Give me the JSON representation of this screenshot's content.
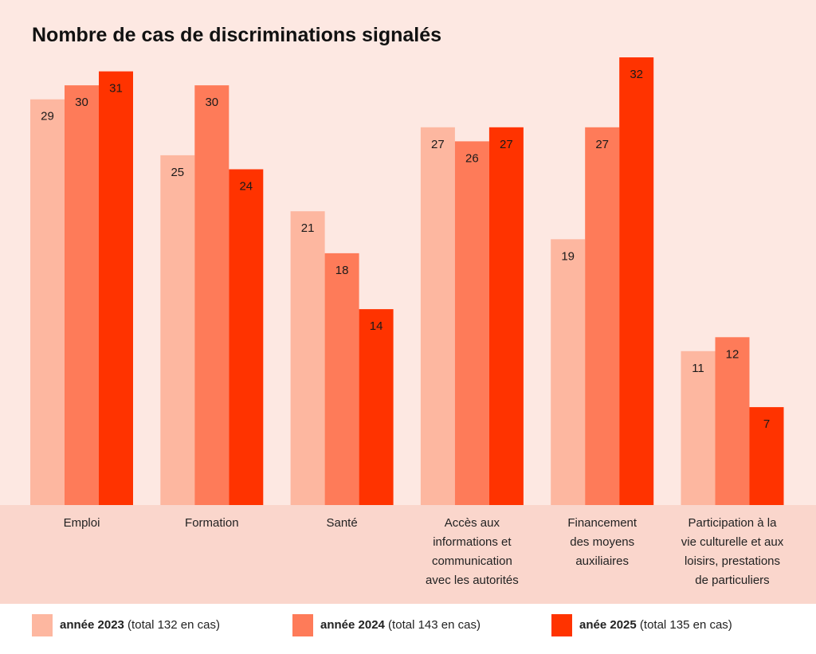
{
  "chart_data": {
    "type": "bar",
    "title": "Nombre de cas de discriminations signalés",
    "categories": [
      [
        "Emploi"
      ],
      [
        "Formation"
      ],
      [
        "Santé"
      ],
      [
        "Accès aux",
        "informations et",
        "communication",
        "avec les autorités"
      ],
      [
        "Financement",
        "des moyens",
        "auxiliaires"
      ],
      [
        "Participation à la",
        "vie culturelle et aux",
        "loisirs, prestations",
        "de particuliers"
      ]
    ],
    "series": [
      {
        "name": "année 2023",
        "total": "(total 132 en cas)",
        "color": "#fdb7a0",
        "values": [
          29,
          25,
          21,
          27,
          19,
          11
        ]
      },
      {
        "name": "année 2024",
        "total": "(total 143 en cas)",
        "color": "#fe7b59",
        "values": [
          30,
          30,
          18,
          26,
          27,
          12
        ]
      },
      {
        "name": "anée 2025",
        "total": "(total 135 en cas)",
        "color": "#ff3300",
        "values": [
          31,
          24,
          14,
          27,
          32,
          7
        ]
      }
    ],
    "ylim": [
      0,
      32
    ],
    "grid": false,
    "legend": "bottom"
  }
}
